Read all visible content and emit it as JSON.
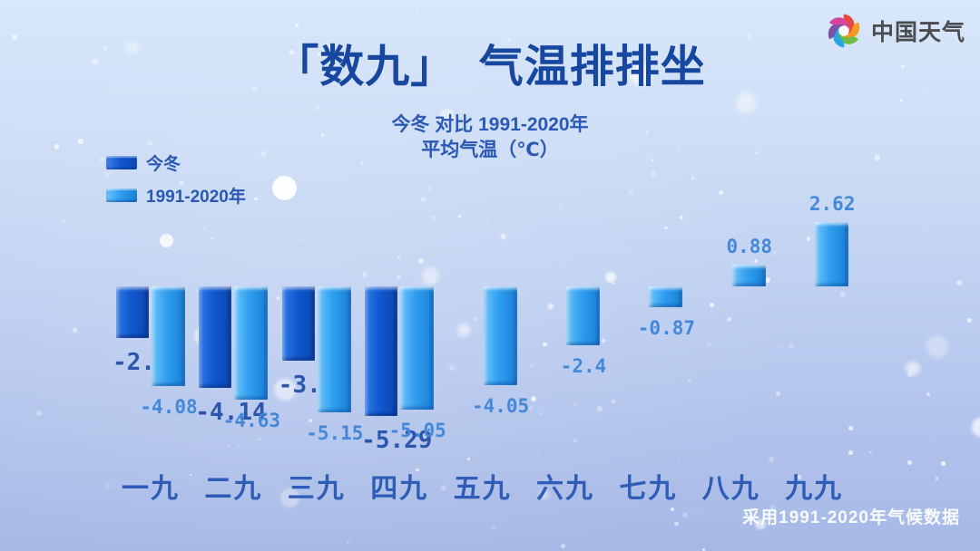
{
  "header": {
    "title": "「数九」　气温排排坐",
    "subtitle_line1": "今冬 对比  1991-2020年",
    "subtitle_line2": "平均气温（℃）",
    "brand": "中国天气"
  },
  "legend": [
    {
      "label": "今冬",
      "color": "#1158cf"
    },
    {
      "label": "1991-2020年",
      "color": "#2f9ef0"
    }
  ],
  "footer_note": "采用1991-2020年气候数据",
  "colors": {
    "title_text": "#17479f",
    "axis_label_text": "#2e5cb6",
    "value_label_dark": "#2c55ac",
    "value_label_light": "#4688d8",
    "background_top": "#d8e7fa",
    "background_bottom": "#a6b8e6",
    "logo_text": "#4b4c50"
  },
  "chart_data": {
    "type": "bar",
    "title": "「数九」 气温排排坐",
    "subtitle": "今冬 对比 1991-2020年 平均气温（℃）",
    "unit": "℃",
    "categories": [
      "一九",
      "二九",
      "三九",
      "四九",
      "五九",
      "六九",
      "七九",
      "八九",
      "九九"
    ],
    "series": [
      {
        "name": "今冬",
        "color": "#1158cf",
        "values": [
          -2.1,
          -4.14,
          -3.02,
          -5.29,
          null,
          null,
          null,
          null,
          null
        ]
      },
      {
        "name": "1991-2020年",
        "color": "#2f9ef0",
        "values": [
          -4.08,
          -4.63,
          -5.15,
          -5.05,
          -4.05,
          -2.4,
          -0.87,
          0.88,
          2.62
        ]
      }
    ],
    "baseline": 0,
    "ylim": [
      -5.5,
      3
    ],
    "grid": false,
    "axes_visible": false,
    "value_labels": true,
    "legend_position": "top-left",
    "source_note": "采用1991-2020年气候数据"
  }
}
